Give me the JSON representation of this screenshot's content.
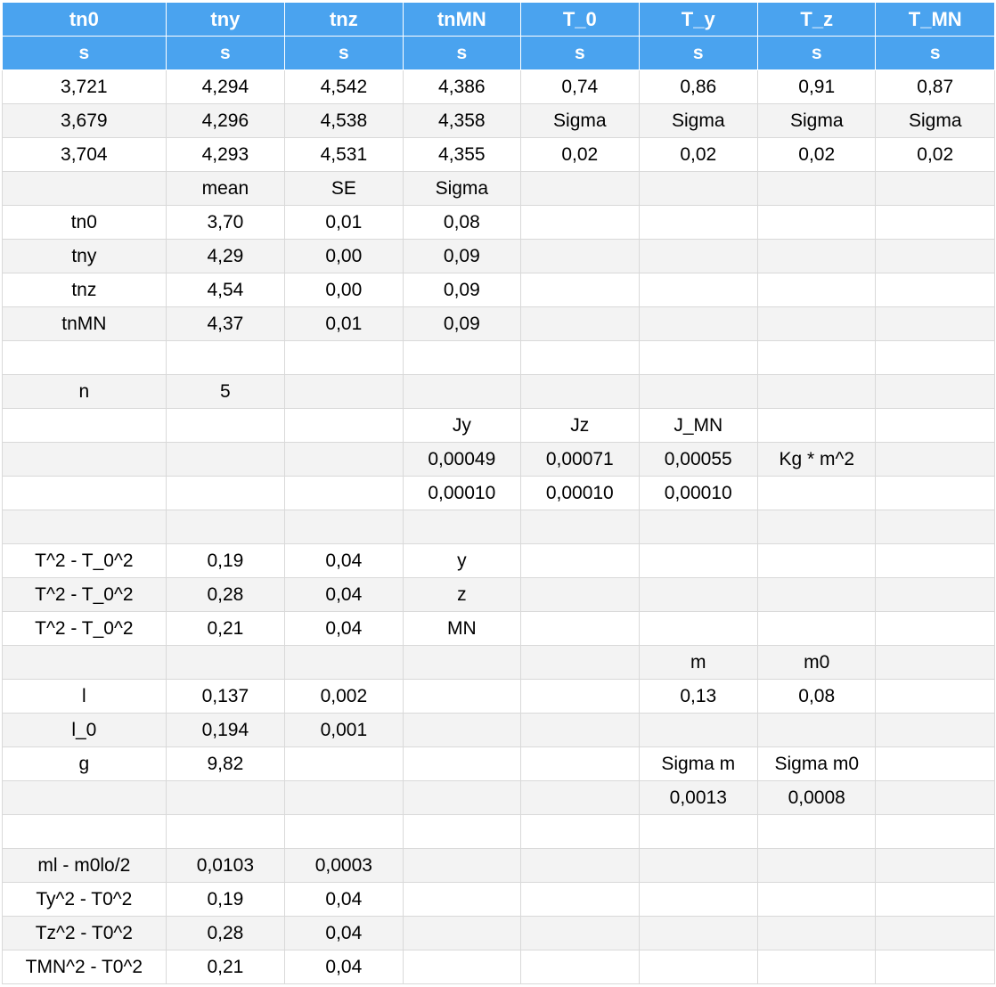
{
  "colors": {
    "header_bg": "#4aa3ef",
    "header_text": "#ffffff",
    "row_alt": "#f3f3f3",
    "grid": "#d9d9d9"
  },
  "table": {
    "headers": [
      "tn0",
      "tny",
      "tnz",
      "tnMN",
      "T_0",
      "T_y",
      "T_z",
      "T_MN"
    ],
    "units": [
      "s",
      "s",
      "s",
      "s",
      "s",
      "s",
      "s",
      "s"
    ],
    "rows": [
      [
        "3,721",
        "4,294",
        "4,542",
        "4,386",
        "0,74",
        "0,86",
        "0,91",
        "0,87"
      ],
      [
        "3,679",
        "4,296",
        "4,538",
        "4,358",
        "Sigma",
        "Sigma",
        "Sigma",
        "Sigma"
      ],
      [
        "3,704",
        "4,293",
        "4,531",
        "4,355",
        "0,02",
        "0,02",
        "0,02",
        "0,02"
      ],
      [
        "",
        "mean",
        "SE",
        "Sigma",
        "",
        "",
        "",
        ""
      ],
      [
        "tn0",
        "3,70",
        "0,01",
        "0,08",
        "",
        "",
        "",
        ""
      ],
      [
        "tny",
        "4,29",
        "0,00",
        "0,09",
        "",
        "",
        "",
        ""
      ],
      [
        "tnz",
        "4,54",
        "0,00",
        "0,09",
        "",
        "",
        "",
        ""
      ],
      [
        "tnMN",
        "4,37",
        "0,01",
        "0,09",
        "",
        "",
        "",
        ""
      ],
      [
        "",
        "",
        "",
        "",
        "",
        "",
        "",
        ""
      ],
      [
        "n",
        "5",
        "",
        "",
        "",
        "",
        "",
        ""
      ],
      [
        "",
        "",
        "",
        "Jy",
        "Jz",
        "J_MN",
        "",
        ""
      ],
      [
        "",
        "",
        "",
        "0,00049",
        "0,00071",
        "0,00055",
        "Kg * m^2",
        ""
      ],
      [
        "",
        "",
        "",
        "0,00010",
        "0,00010",
        "0,00010",
        "",
        ""
      ],
      [
        "",
        "",
        "",
        "",
        "",
        "",
        "",
        ""
      ],
      [
        "T^2 - T_0^2",
        "0,19",
        "0,04",
        "y",
        "",
        "",
        "",
        ""
      ],
      [
        "T^2 - T_0^2",
        "0,28",
        "0,04",
        "z",
        "",
        "",
        "",
        ""
      ],
      [
        "T^2 - T_0^2",
        "0,21",
        "0,04",
        "MN",
        "",
        "",
        "",
        ""
      ],
      [
        "",
        "",
        "",
        "",
        "",
        "m",
        "m0",
        ""
      ],
      [
        "l",
        "0,137",
        "0,002",
        "",
        "",
        "0,13",
        "0,08",
        ""
      ],
      [
        "l_0",
        "0,194",
        "0,001",
        "",
        "",
        "",
        "",
        ""
      ],
      [
        "g",
        "9,82",
        "",
        "",
        "",
        "Sigma m",
        "Sigma m0",
        ""
      ],
      [
        "",
        "",
        "",
        "",
        "",
        "0,0013",
        "0,0008",
        ""
      ],
      [
        "",
        "",
        "",
        "",
        "",
        "",
        "",
        ""
      ],
      [
        "ml - m0lo/2",
        "0,0103",
        "0,0003",
        "",
        "",
        "",
        "",
        ""
      ],
      [
        "Ty^2 - T0^2",
        "0,19",
        "0,04",
        "",
        "",
        "",
        "",
        ""
      ],
      [
        "Tz^2 - T0^2",
        "0,28",
        "0,04",
        "",
        "",
        "",
        "",
        ""
      ],
      [
        "TMN^2 - T0^2",
        "0,21",
        "0,04",
        "",
        "",
        "",
        "",
        ""
      ]
    ]
  }
}
